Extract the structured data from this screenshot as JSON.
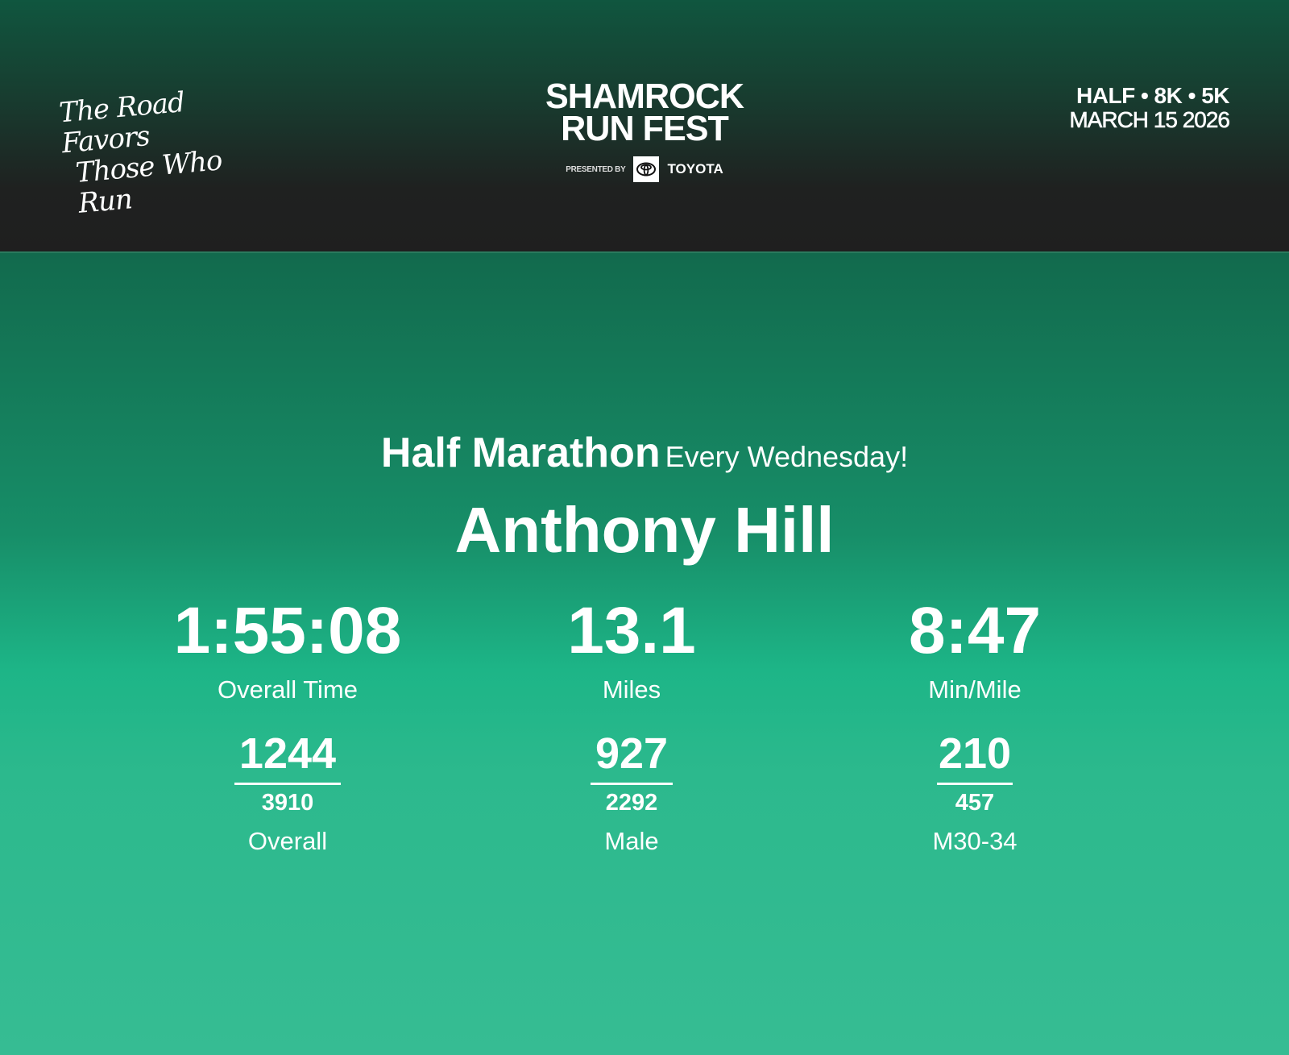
{
  "header": {
    "tagline": [
      "The Road Favors",
      "Those Who Run"
    ],
    "logo": {
      "title_line1": "SHAMROCK",
      "title_line2": "RUN FEST",
      "presented_by": "PRESENTED BY",
      "sponsor": "TOYOTA"
    },
    "event": {
      "distances": "HALF • 8K • 5K",
      "date": "MARCH 15 2026"
    }
  },
  "result": {
    "race": "Half Marathon",
    "race_subtitle": "Every Wednesday!",
    "runner_name": "Anthony Hill",
    "stats": [
      {
        "value": "1:55:08",
        "label": "Overall Time"
      },
      {
        "value": "13.1",
        "label": "Miles"
      },
      {
        "value": "8:47",
        "label": "Min/Mile"
      }
    ],
    "placements": [
      {
        "place": "1244",
        "total": "3910",
        "category": "Overall"
      },
      {
        "place": "927",
        "total": "2292",
        "category": "Male"
      },
      {
        "place": "210",
        "total": "457",
        "category": "M30-34"
      }
    ]
  },
  "colors": {
    "header_top": "#10563f",
    "header_bottom": "#1f1f1f",
    "main_top": "#126a4d",
    "main_mid": "#1db587",
    "main_bottom": "#36bc93"
  }
}
